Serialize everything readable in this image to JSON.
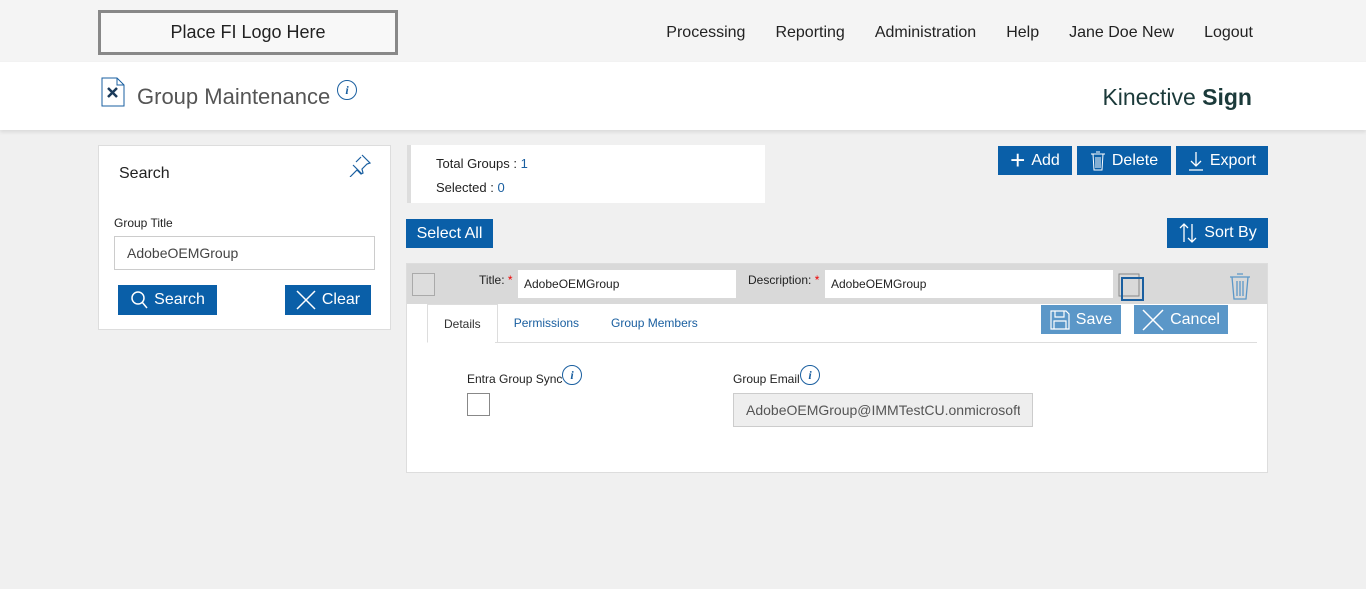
{
  "logo": "Place FI Logo Here",
  "nav": [
    "Processing",
    "Reporting",
    "Administration",
    "Help",
    "Jane Doe New",
    "Logout"
  ],
  "page_title": "Group Maintenance",
  "brand": {
    "light": "Kinective",
    "bold": "Sign"
  },
  "search": {
    "heading": "Search",
    "field_label": "Group Title",
    "field_value": "AdobeOEMGroup",
    "search_label": "Search",
    "clear_label": "Clear"
  },
  "stats": {
    "total_label": "Total Groups :",
    "total": "1",
    "selected_label": "Selected :",
    "selected": "0"
  },
  "toolbar": {
    "add": "Add",
    "delete": "Delete",
    "export": "Export",
    "select_all": "Select All",
    "sort_by": "Sort By"
  },
  "group": {
    "title_label": "Title:",
    "title_value": "AdobeOEMGroup",
    "desc_label": "Description:",
    "desc_value": "AdobeOEMGroup",
    "tabs": [
      "Details",
      "Permissions",
      "Group Members"
    ],
    "save": "Save",
    "cancel": "Cancel",
    "sync_label": "Entra Group Sync",
    "email_label": "Group Email",
    "email_value": "AdobeOEMGroup@IMMTestCU.onmicrosoft.com"
  },
  "colors": {
    "primary": "#0a5fa8",
    "disabled": "#5b97c8"
  }
}
